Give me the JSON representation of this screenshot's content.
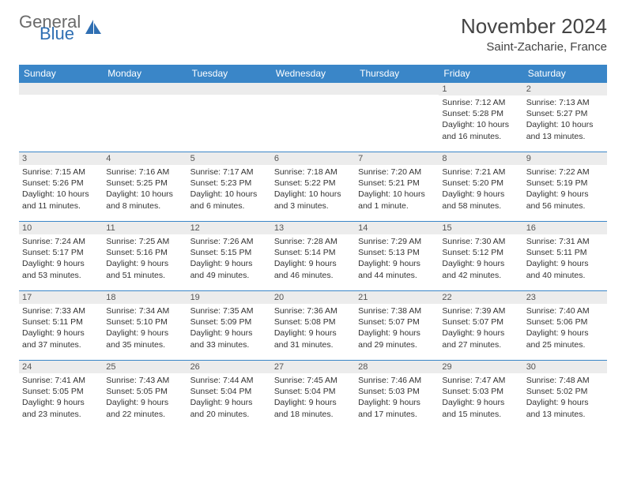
{
  "logo": {
    "text1": "General",
    "text2": "Blue"
  },
  "title": "November 2024",
  "location": "Saint-Zacharie, France",
  "colors": {
    "headerBg": "#3a86c8",
    "headerText": "#ffffff",
    "dayStripBg": "#ececec",
    "borderColor": "#3a86c8",
    "logoGray": "#6a6a6a",
    "logoBlue": "#2f6fb3"
  },
  "dayHeaders": [
    "Sunday",
    "Monday",
    "Tuesday",
    "Wednesday",
    "Thursday",
    "Friday",
    "Saturday"
  ],
  "weeks": [
    [
      {
        "n": "",
        "sunrise": "",
        "sunset": "",
        "daylight": ""
      },
      {
        "n": "",
        "sunrise": "",
        "sunset": "",
        "daylight": ""
      },
      {
        "n": "",
        "sunrise": "",
        "sunset": "",
        "daylight": ""
      },
      {
        "n": "",
        "sunrise": "",
        "sunset": "",
        "daylight": ""
      },
      {
        "n": "",
        "sunrise": "",
        "sunset": "",
        "daylight": ""
      },
      {
        "n": "1",
        "sunrise": "Sunrise: 7:12 AM",
        "sunset": "Sunset: 5:28 PM",
        "daylight": "Daylight: 10 hours and 16 minutes."
      },
      {
        "n": "2",
        "sunrise": "Sunrise: 7:13 AM",
        "sunset": "Sunset: 5:27 PM",
        "daylight": "Daylight: 10 hours and 13 minutes."
      }
    ],
    [
      {
        "n": "3",
        "sunrise": "Sunrise: 7:15 AM",
        "sunset": "Sunset: 5:26 PM",
        "daylight": "Daylight: 10 hours and 11 minutes."
      },
      {
        "n": "4",
        "sunrise": "Sunrise: 7:16 AM",
        "sunset": "Sunset: 5:25 PM",
        "daylight": "Daylight: 10 hours and 8 minutes."
      },
      {
        "n": "5",
        "sunrise": "Sunrise: 7:17 AM",
        "sunset": "Sunset: 5:23 PM",
        "daylight": "Daylight: 10 hours and 6 minutes."
      },
      {
        "n": "6",
        "sunrise": "Sunrise: 7:18 AM",
        "sunset": "Sunset: 5:22 PM",
        "daylight": "Daylight: 10 hours and 3 minutes."
      },
      {
        "n": "7",
        "sunrise": "Sunrise: 7:20 AM",
        "sunset": "Sunset: 5:21 PM",
        "daylight": "Daylight: 10 hours and 1 minute."
      },
      {
        "n": "8",
        "sunrise": "Sunrise: 7:21 AM",
        "sunset": "Sunset: 5:20 PM",
        "daylight": "Daylight: 9 hours and 58 minutes."
      },
      {
        "n": "9",
        "sunrise": "Sunrise: 7:22 AM",
        "sunset": "Sunset: 5:19 PM",
        "daylight": "Daylight: 9 hours and 56 minutes."
      }
    ],
    [
      {
        "n": "10",
        "sunrise": "Sunrise: 7:24 AM",
        "sunset": "Sunset: 5:17 PM",
        "daylight": "Daylight: 9 hours and 53 minutes."
      },
      {
        "n": "11",
        "sunrise": "Sunrise: 7:25 AM",
        "sunset": "Sunset: 5:16 PM",
        "daylight": "Daylight: 9 hours and 51 minutes."
      },
      {
        "n": "12",
        "sunrise": "Sunrise: 7:26 AM",
        "sunset": "Sunset: 5:15 PM",
        "daylight": "Daylight: 9 hours and 49 minutes."
      },
      {
        "n": "13",
        "sunrise": "Sunrise: 7:28 AM",
        "sunset": "Sunset: 5:14 PM",
        "daylight": "Daylight: 9 hours and 46 minutes."
      },
      {
        "n": "14",
        "sunrise": "Sunrise: 7:29 AM",
        "sunset": "Sunset: 5:13 PM",
        "daylight": "Daylight: 9 hours and 44 minutes."
      },
      {
        "n": "15",
        "sunrise": "Sunrise: 7:30 AM",
        "sunset": "Sunset: 5:12 PM",
        "daylight": "Daylight: 9 hours and 42 minutes."
      },
      {
        "n": "16",
        "sunrise": "Sunrise: 7:31 AM",
        "sunset": "Sunset: 5:11 PM",
        "daylight": "Daylight: 9 hours and 40 minutes."
      }
    ],
    [
      {
        "n": "17",
        "sunrise": "Sunrise: 7:33 AM",
        "sunset": "Sunset: 5:11 PM",
        "daylight": "Daylight: 9 hours and 37 minutes."
      },
      {
        "n": "18",
        "sunrise": "Sunrise: 7:34 AM",
        "sunset": "Sunset: 5:10 PM",
        "daylight": "Daylight: 9 hours and 35 minutes."
      },
      {
        "n": "19",
        "sunrise": "Sunrise: 7:35 AM",
        "sunset": "Sunset: 5:09 PM",
        "daylight": "Daylight: 9 hours and 33 minutes."
      },
      {
        "n": "20",
        "sunrise": "Sunrise: 7:36 AM",
        "sunset": "Sunset: 5:08 PM",
        "daylight": "Daylight: 9 hours and 31 minutes."
      },
      {
        "n": "21",
        "sunrise": "Sunrise: 7:38 AM",
        "sunset": "Sunset: 5:07 PM",
        "daylight": "Daylight: 9 hours and 29 minutes."
      },
      {
        "n": "22",
        "sunrise": "Sunrise: 7:39 AM",
        "sunset": "Sunset: 5:07 PM",
        "daylight": "Daylight: 9 hours and 27 minutes."
      },
      {
        "n": "23",
        "sunrise": "Sunrise: 7:40 AM",
        "sunset": "Sunset: 5:06 PM",
        "daylight": "Daylight: 9 hours and 25 minutes."
      }
    ],
    [
      {
        "n": "24",
        "sunrise": "Sunrise: 7:41 AM",
        "sunset": "Sunset: 5:05 PM",
        "daylight": "Daylight: 9 hours and 23 minutes."
      },
      {
        "n": "25",
        "sunrise": "Sunrise: 7:43 AM",
        "sunset": "Sunset: 5:05 PM",
        "daylight": "Daylight: 9 hours and 22 minutes."
      },
      {
        "n": "26",
        "sunrise": "Sunrise: 7:44 AM",
        "sunset": "Sunset: 5:04 PM",
        "daylight": "Daylight: 9 hours and 20 minutes."
      },
      {
        "n": "27",
        "sunrise": "Sunrise: 7:45 AM",
        "sunset": "Sunset: 5:04 PM",
        "daylight": "Daylight: 9 hours and 18 minutes."
      },
      {
        "n": "28",
        "sunrise": "Sunrise: 7:46 AM",
        "sunset": "Sunset: 5:03 PM",
        "daylight": "Daylight: 9 hours and 17 minutes."
      },
      {
        "n": "29",
        "sunrise": "Sunrise: 7:47 AM",
        "sunset": "Sunset: 5:03 PM",
        "daylight": "Daylight: 9 hours and 15 minutes."
      },
      {
        "n": "30",
        "sunrise": "Sunrise: 7:48 AM",
        "sunset": "Sunset: 5:02 PM",
        "daylight": "Daylight: 9 hours and 13 minutes."
      }
    ]
  ]
}
